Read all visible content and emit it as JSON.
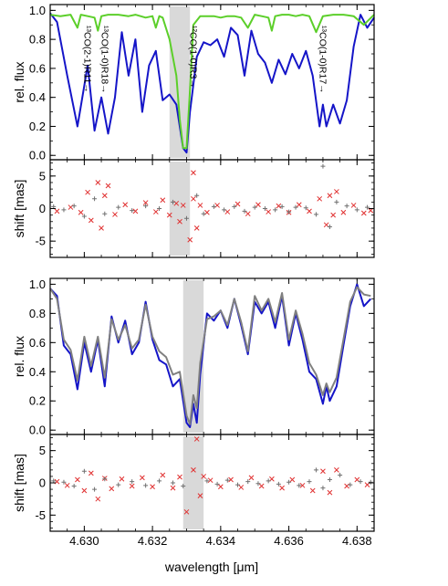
{
  "figure": {
    "xlabel": "wavelength [μm]",
    "xticks": [
      "4.630",
      "4.632",
      "4.634",
      "4.636",
      "4.638"
    ]
  },
  "colors": {
    "observed": "#1515c8",
    "telluric": "#5ccf2a",
    "model": "#808080",
    "shift_red": "#e03030",
    "shift_grey": "#707070",
    "band": "#d9d9d9"
  },
  "chart_data": [
    {
      "type": "line",
      "panel": "top-flux",
      "ylabel": "rel. flux",
      "yticks": [
        "0.0",
        "0.2",
        "0.4",
        "0.6",
        "0.8",
        "1.0"
      ],
      "xlim": [
        4.629,
        4.6385
      ],
      "ylim": [
        -0.03,
        1.04
      ],
      "highlight": [
        4.6325,
        4.6331
      ],
      "series": [
        {
          "name": "",
          "color": "#1515c8",
          "x": [
            4.629,
            4.6292,
            4.6295,
            4.6298,
            4.6301,
            4.6303,
            4.6305,
            4.6307,
            4.6309,
            4.6311,
            4.6313,
            4.6315,
            4.6317,
            4.6319,
            4.6321,
            4.6323,
            4.6325,
            4.6327,
            4.6329,
            4.633,
            4.6331,
            4.6333,
            4.6335,
            4.6337,
            4.6339,
            4.6341,
            4.6343,
            4.6345,
            4.6347,
            4.6349,
            4.6351,
            4.6353,
            4.6355,
            4.6357,
            4.6359,
            4.6361,
            4.6363,
            4.6365,
            4.6367,
            4.6369,
            4.637,
            4.6371,
            4.6373,
            4.6375,
            4.6377,
            4.6379,
            4.6381,
            4.6383,
            4.6385
          ],
          "y": [
            0.98,
            0.92,
            0.55,
            0.2,
            0.62,
            0.17,
            0.4,
            0.15,
            0.4,
            0.85,
            0.55,
            0.8,
            0.3,
            0.62,
            0.72,
            0.38,
            0.42,
            0.35,
            0.05,
            0.02,
            0.3,
            0.68,
            0.78,
            0.76,
            0.8,
            0.68,
            0.88,
            0.83,
            0.55,
            0.86,
            0.7,
            0.64,
            0.5,
            0.66,
            0.56,
            0.7,
            0.6,
            0.72,
            0.55,
            0.2,
            0.35,
            0.2,
            0.35,
            0.22,
            0.38,
            0.75,
            0.97,
            0.88,
            0.95
          ]
        },
        {
          "name": "",
          "color": "#5ccf2a",
          "x": [
            4.629,
            4.6293,
            4.6296,
            4.6298,
            4.6299,
            4.6301,
            4.6303,
            4.6304,
            4.6305,
            4.6307,
            4.631,
            4.6313,
            4.6315,
            4.6318,
            4.632,
            4.6321,
            4.6322,
            4.6323,
            4.6325,
            4.6327,
            4.6328,
            4.6329,
            4.633,
            4.6331,
            4.6332,
            4.6334,
            4.6336,
            4.6338,
            4.634,
            4.6342,
            4.6344,
            4.6346,
            4.6348,
            4.635,
            4.6352,
            4.6354,
            4.6355,
            4.6356,
            4.6358,
            4.636,
            4.6362,
            4.6364,
            4.6366,
            4.6368,
            4.637,
            4.6373,
            4.6376,
            4.6379,
            4.6382,
            4.6385
          ],
          "y": [
            0.97,
            0.96,
            0.97,
            0.88,
            0.97,
            0.96,
            0.95,
            0.86,
            0.96,
            0.97,
            0.97,
            0.96,
            0.97,
            0.95,
            0.96,
            0.88,
            0.96,
            0.95,
            0.8,
            0.55,
            0.25,
            0.05,
            0.05,
            0.45,
            0.9,
            0.96,
            0.96,
            0.96,
            0.95,
            0.96,
            0.96,
            0.95,
            0.88,
            0.97,
            0.96,
            0.95,
            0.86,
            0.96,
            0.97,
            0.97,
            0.96,
            0.97,
            0.96,
            0.85,
            0.96,
            0.97,
            0.97,
            0.96,
            0.9,
            0.97
          ]
        }
      ],
      "annotations": [
        {
          "text": "¹³CO(2-1)R11→",
          "x": 4.6299
        },
        {
          "text": "¹³CO(1-0)R18→",
          "x": 4.6304
        },
        {
          "text": "¹²CO(1-0)R3→",
          "x": 4.633
        },
        {
          "text": "¹³CO(1-0)R17→",
          "x": 4.6368
        }
      ]
    },
    {
      "type": "scatter",
      "panel": "top-shift",
      "ylabel": "shift [mas]",
      "yticks": [
        "5",
        "0",
        "-5"
      ],
      "xlim": [
        4.629,
        4.6385
      ],
      "ylim": [
        -7.5,
        7.5
      ],
      "highlight": [
        4.6325,
        4.6331
      ],
      "series": [
        {
          "name": "",
          "color": "#e03030",
          "x": [
            4.6292,
            4.6296,
            4.6299,
            4.6301,
            4.6302,
            4.6304,
            4.6305,
            4.6306,
            4.6307,
            4.6309,
            4.6312,
            4.6315,
            4.6318,
            4.6321,
            4.6323,
            4.6325,
            4.6327,
            4.6328,
            4.6329,
            4.6331,
            4.6332,
            4.6332,
            4.6333,
            4.6334,
            4.6336,
            4.6339,
            4.6342,
            4.6345,
            4.6348,
            4.6351,
            4.6354,
            4.6357,
            4.636,
            4.6363,
            4.6366,
            4.6369,
            4.6371,
            4.6372,
            4.6373,
            4.6374,
            4.6376,
            4.6379,
            4.6382,
            4.6384
          ],
          "y": [
            -0.4,
            0.2,
            -0.6,
            2.5,
            -1.8,
            4.0,
            -3.0,
            2.0,
            3.5,
            -0.9,
            0.6,
            -0.4,
            0.9,
            -0.5,
            1.3,
            -1.0,
            0.8,
            -2.0,
            0.5,
            -4.8,
            1.5,
            5.5,
            -3.0,
            0.5,
            -0.6,
            0.5,
            -0.5,
            0.7,
            -0.8,
            0.6,
            -0.5,
            0.4,
            -0.6,
            0.6,
            -0.4,
            1.5,
            -2.5,
            2.0,
            -1.0,
            2.6,
            -0.6,
            0.5,
            -0.7,
            -0.3
          ]
        },
        {
          "name": "",
          "color": "#707070",
          "x": [
            4.6291,
            4.6294,
            4.6297,
            4.63,
            4.6303,
            4.6306,
            4.631,
            4.6314,
            4.6318,
            4.6322,
            4.6326,
            4.633,
            4.6333,
            4.6335,
            4.6338,
            4.6341,
            4.6344,
            4.6347,
            4.635,
            4.6353,
            4.6356,
            4.6358,
            4.636,
            4.6362,
            4.6365,
            4.6368,
            4.637,
            4.6372,
            4.6374,
            4.6377,
            4.638,
            4.6383
          ],
          "y": [
            0.3,
            -0.2,
            0.4,
            -1.2,
            1.5,
            -0.8,
            0.2,
            -0.3,
            0.4,
            0.0,
            1.0,
            -1.5,
            2.0,
            -0.8,
            0.3,
            -0.2,
            0.3,
            -0.4,
            0.2,
            0.0,
            -0.2,
            0.3,
            -0.5,
            0.2,
            0.1,
            -0.9,
            6.5,
            -2.8,
            1.0,
            0.4,
            -0.2,
            0.2
          ]
        }
      ]
    },
    {
      "type": "line",
      "panel": "bottom-flux",
      "ylabel": "rel. flux",
      "yticks": [
        "0.0",
        "0.2",
        "0.4",
        "0.6",
        "0.8",
        "1.0"
      ],
      "xlim": [
        4.629,
        4.6385
      ],
      "ylim": [
        -0.03,
        1.04
      ],
      "highlight": [
        4.6329,
        4.6335
      ],
      "series": [
        {
          "name": "",
          "color": "#1515c8",
          "x": [
            4.629,
            4.6292,
            4.6294,
            4.6296,
            4.6298,
            4.63,
            4.6302,
            4.6304,
            4.6306,
            4.6308,
            4.631,
            4.6312,
            4.6314,
            4.6316,
            4.6318,
            4.632,
            4.6322,
            4.6324,
            4.6326,
            4.6328,
            4.633,
            4.6331,
            4.6332,
            4.6333,
            4.6334,
            4.6336,
            4.6338,
            4.634,
            4.6342,
            4.6344,
            4.6346,
            4.6348,
            4.635,
            4.6352,
            4.6354,
            4.6356,
            4.6358,
            4.636,
            4.6362,
            4.6364,
            4.6366,
            4.6368,
            4.637,
            4.6371,
            4.6372,
            4.6374,
            4.6376,
            4.6378,
            4.638,
            4.6382,
            4.6384
          ],
          "y": [
            0.97,
            0.92,
            0.58,
            0.52,
            0.28,
            0.6,
            0.4,
            0.62,
            0.3,
            0.78,
            0.6,
            0.75,
            0.52,
            0.6,
            0.88,
            0.62,
            0.48,
            0.45,
            0.3,
            0.35,
            0.05,
            0.02,
            0.18,
            0.05,
            0.38,
            0.8,
            0.75,
            0.82,
            0.7,
            0.9,
            0.72,
            0.52,
            0.88,
            0.8,
            0.88,
            0.7,
            0.92,
            0.58,
            0.8,
            0.62,
            0.4,
            0.35,
            0.18,
            0.3,
            0.2,
            0.3,
            0.58,
            0.85,
            1.0,
            0.85,
            0.9
          ]
        },
        {
          "name": "",
          "color": "#808080",
          "x": [
            4.629,
            4.6292,
            4.6294,
            4.6296,
            4.6298,
            4.63,
            4.6302,
            4.6304,
            4.6306,
            4.6308,
            4.631,
            4.6312,
            4.6314,
            4.6316,
            4.6318,
            4.632,
            4.6322,
            4.6324,
            4.6326,
            4.6328,
            4.633,
            4.6331,
            4.6332,
            4.6333,
            4.6334,
            4.6336,
            4.6338,
            4.634,
            4.6342,
            4.6344,
            4.6346,
            4.6348,
            4.635,
            4.6352,
            4.6354,
            4.6356,
            4.6358,
            4.636,
            4.6362,
            4.6364,
            4.6366,
            4.6368,
            4.637,
            4.6371,
            4.6372,
            4.6374,
            4.6376,
            4.6378,
            4.638,
            4.6382,
            4.6384
          ],
          "y": [
            0.97,
            0.9,
            0.62,
            0.55,
            0.34,
            0.64,
            0.44,
            0.64,
            0.36,
            0.76,
            0.62,
            0.72,
            0.56,
            0.62,
            0.86,
            0.64,
            0.54,
            0.5,
            0.38,
            0.4,
            0.1,
            0.04,
            0.24,
            0.15,
            0.46,
            0.76,
            0.78,
            0.82,
            0.72,
            0.9,
            0.74,
            0.54,
            0.92,
            0.82,
            0.9,
            0.74,
            0.94,
            0.62,
            0.82,
            0.66,
            0.46,
            0.38,
            0.24,
            0.32,
            0.26,
            0.36,
            0.62,
            0.88,
            0.98,
            0.93,
            0.92
          ]
        }
      ]
    },
    {
      "type": "scatter",
      "panel": "bottom-shift",
      "ylabel": "shift [mas]",
      "yticks": [
        "5",
        "0",
        "-5"
      ],
      "xlim": [
        4.629,
        4.6385
      ],
      "ylim": [
        -7.5,
        7.5
      ],
      "highlight": [
        4.6329,
        4.6335
      ],
      "series": [
        {
          "name": "",
          "color": "#e03030",
          "x": [
            4.6292,
            4.6295,
            4.6298,
            4.63,
            4.6302,
            4.6304,
            4.6306,
            4.6308,
            4.6311,
            4.6314,
            4.6317,
            4.632,
            4.6323,
            4.6326,
            4.6328,
            4.633,
            4.6332,
            4.6333,
            4.6334,
            4.6335,
            4.6337,
            4.634,
            4.6343,
            4.6346,
            4.6349,
            4.6352,
            4.6355,
            4.6358,
            4.6361,
            4.6364,
            4.6367,
            4.637,
            4.6372,
            4.6374,
            4.6377,
            4.638,
            4.6383
          ],
          "y": [
            0.2,
            -0.4,
            0.5,
            -1.2,
            1.5,
            -2.5,
            0.7,
            -0.9,
            0.6,
            -0.5,
            0.8,
            -0.6,
            1.2,
            -0.8,
            0.9,
            -4.5,
            2.0,
            6.8,
            -2.0,
            1.0,
            0.4,
            -0.6,
            0.5,
            -0.7,
            0.8,
            -0.5,
            0.6,
            -0.8,
            0.5,
            -0.4,
            -1.2,
            1.8,
            -1.5,
            2.0,
            -0.5,
            0.5,
            -0.3
          ]
        },
        {
          "name": "",
          "color": "#707070",
          "x": [
            4.6291,
            4.6294,
            4.6297,
            4.63,
            4.6303,
            4.6306,
            4.631,
            4.6314,
            4.6318,
            4.6322,
            4.6326,
            4.6329,
            4.6336,
            4.6339,
            4.6342,
            4.6345,
            4.6348,
            4.6351,
            4.6354,
            4.6357,
            4.636,
            4.6363,
            4.6366,
            4.6368,
            4.637,
            4.6372,
            4.6375,
            4.6378,
            4.6381,
            4.6384
          ],
          "y": [
            0.3,
            0.1,
            -0.5,
            1.8,
            -1.0,
            0.6,
            -0.3,
            0.2,
            -0.4,
            0.3,
            0.0,
            -0.5,
            0.3,
            -0.2,
            0.4,
            -0.3,
            0.2,
            -0.1,
            0.3,
            -0.2,
            0.1,
            -0.4,
            0.2,
            2.0,
            -0.8,
            0.5,
            1.2,
            -0.3,
            0.2,
            0.1
          ]
        }
      ]
    }
  ]
}
